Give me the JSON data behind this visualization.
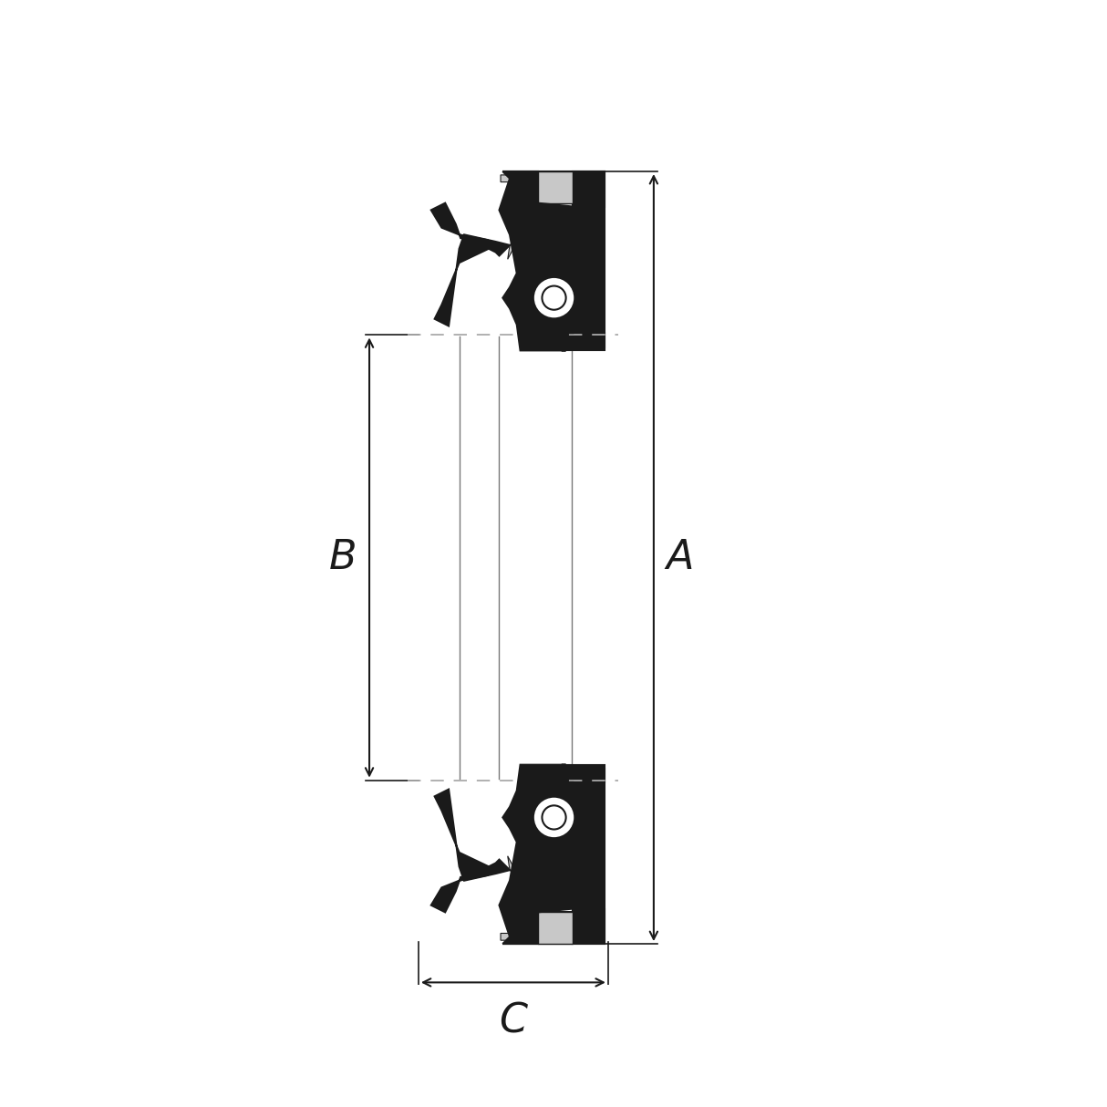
{
  "background_color": "#ffffff",
  "line_color": "#1a1a1a",
  "dim_line_color": "#1a1a1a",
  "dashed_line_color": "#aaaaaa",
  "fill_black": "#1a1a1a",
  "fill_gray": "#c8c8c8",
  "fill_white": "#ffffff",
  "label_A": "A",
  "label_B": "B",
  "label_C": "C",
  "figsize": [
    12.14,
    12.14
  ],
  "dpi": 100,
  "label_fontsize": 32
}
